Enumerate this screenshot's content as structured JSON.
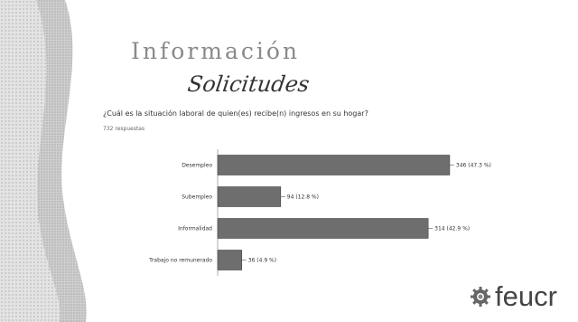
{
  "header": {
    "title": "Información",
    "subtitle": "Solicitudes"
  },
  "question": "¿Cuál es la situación laboral de quien(es) recibe(n) ingresos en su hogar?",
  "responses_count": "732 respuestas",
  "logo": {
    "text": "feucr",
    "icon": "gear-icon"
  },
  "colors": {
    "bar": "#6e6e6e",
    "bar_stroke": "#444444",
    "deco": "#bdbdbd"
  },
  "chart_data": {
    "type": "bar",
    "orientation": "horizontal",
    "categories": [
      "Desempleo",
      "Subempleo",
      "Informalidad",
      "Trabajo no remunerado"
    ],
    "values": [
      346,
      94,
      314,
      36
    ],
    "value_labels": [
      "346 (47.3 %)",
      "94 (12.8 %)",
      "314 (42.9 %)",
      "36 (4.9 %)"
    ],
    "xlim": [
      0,
      400
    ],
    "xticks": [
      0,
      100,
      200,
      300,
      400
    ],
    "grid": false
  }
}
